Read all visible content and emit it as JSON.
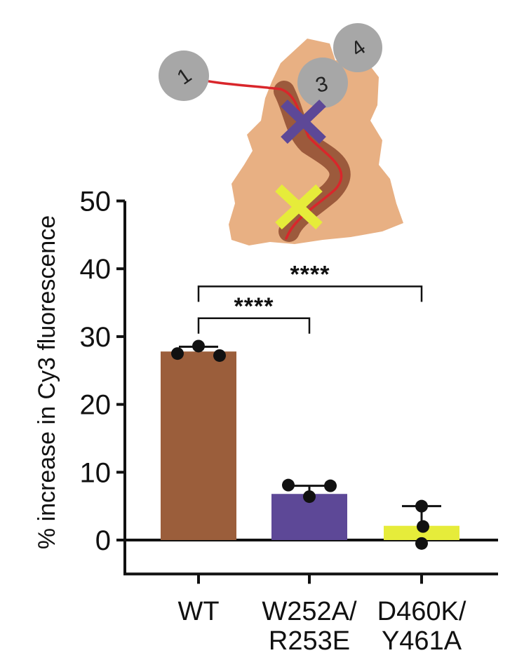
{
  "chart_data": {
    "type": "bar",
    "title": "",
    "ylabel": "% increase in Cy3 fluorescence",
    "xlabel": "",
    "ylim": [
      -5,
      50
    ],
    "yticks": [
      0,
      10,
      20,
      30,
      40,
      50
    ],
    "categories": [
      {
        "line1": "WT",
        "line2": ""
      },
      {
        "line1": "W252A/",
        "line2": "R253E"
      },
      {
        "line1": "D460K/",
        "line2": "Y461A"
      }
    ],
    "values": [
      27.8,
      6.8,
      2.1
    ],
    "error_high": [
      28.5,
      8.0,
      5.0
    ],
    "colors": [
      "#9b5e3b",
      "#5d4897",
      "#e6ec3a"
    ],
    "points": [
      [
        27.5,
        28.6,
        27.2
      ],
      [
        8.1,
        6.4,
        8.0
      ],
      [
        5.0,
        2.0,
        -0.5
      ]
    ],
    "significance": [
      {
        "from": 0,
        "to": 2,
        "label": "****",
        "y": 37.4
      },
      {
        "from": 0,
        "to": 1,
        "label": "****",
        "y": 32.7
      }
    ],
    "grid": false,
    "legend": "none",
    "inset": {
      "description_colors": {
        "protein": "#e8b083",
        "channel": "#9c5a3c",
        "strand": "#d9262b",
        "node": "#a7a7a7",
        "cross_top": "#5d4897",
        "cross_bottom": "#e6ec3a"
      },
      "nodes": [
        "1",
        "3",
        "4"
      ]
    }
  }
}
